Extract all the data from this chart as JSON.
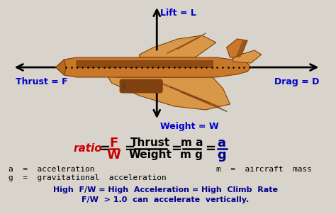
{
  "bg_color": "#d8d4cc",
  "blue": "#0000cc",
  "red": "#cc0000",
  "black": "#000000",
  "dark_blue": "#00008B",
  "lift_label": "Lift = L",
  "weight_label": "Weight = W",
  "thrust_label": "Thrust = F",
  "drag_label": "Drag = D",
  "eq_line1": "High  F/W = High  Acceleration = High  Climb  Rate",
  "eq_line2": "F/W  > 1.0  can  accelerate  vertically.",
  "def1": "a  =  acceleration",
  "def2": "g  =  gravitational  acceleration",
  "def3": "m  =  aircraft  mass",
  "plane_body": "#b86818",
  "plane_mid": "#c87828",
  "plane_light": "#d89848",
  "plane_dark": "#804010"
}
